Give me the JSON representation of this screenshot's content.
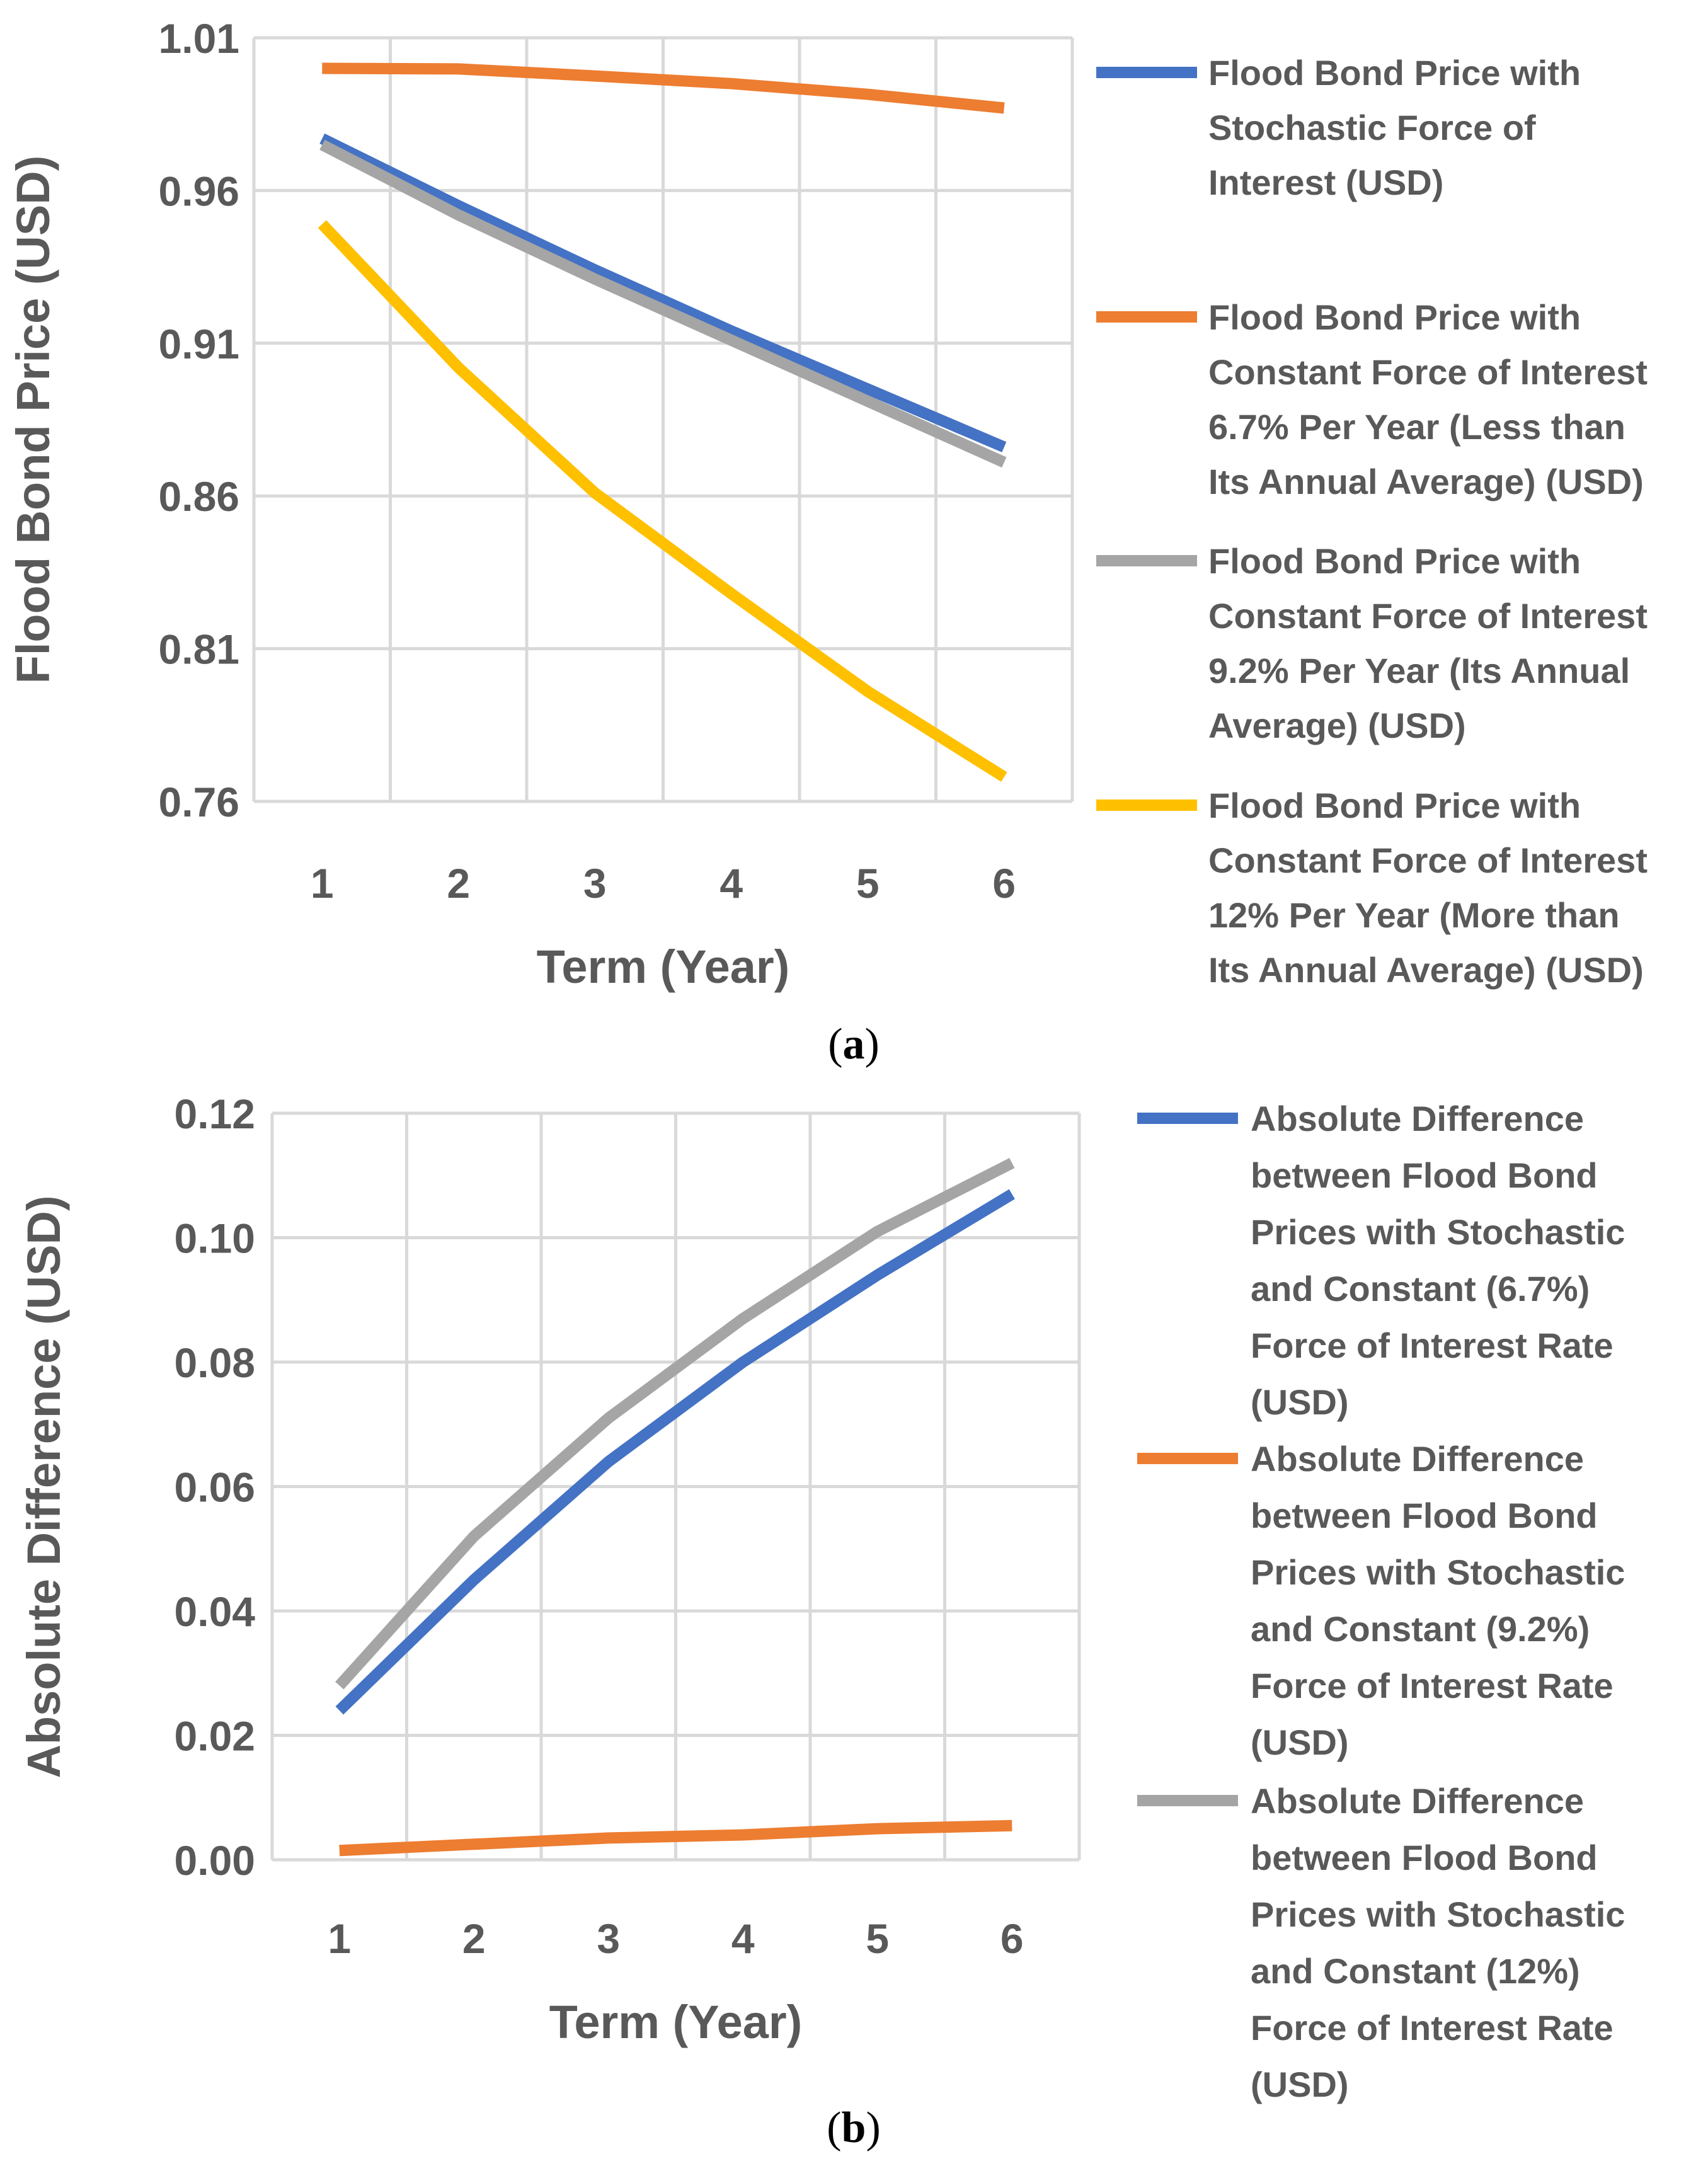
{
  "chart_data": [
    {
      "type": "line",
      "caption_letter": "a",
      "xlabel": "Term (Year)",
      "ylabel": "Flood Bond Price (USD)",
      "categories": [
        1,
        2,
        3,
        4,
        5,
        6
      ],
      "x_tick_labels": [
        "1",
        "2",
        "3",
        "4",
        "5",
        "6"
      ],
      "ylim": [
        0.76,
        1.01
      ],
      "y_ticks": [
        0.76,
        0.81,
        0.86,
        0.91,
        0.96,
        1.01
      ],
      "y_tick_labels": [
        "0.76",
        "0.81",
        "0.86",
        "0.91",
        "0.96",
        "1.01"
      ],
      "grid": true,
      "legend_position": "right",
      "series": [
        {
          "name": "Flood Bond Price with Stochastic Force of Interest (USD)",
          "legend_lines": [
            "Flood Bond Price with",
            "Stochastic Force of",
            "Interest (USD)"
          ],
          "color": "#4472C4",
          "values": [
            0.977,
            0.955,
            0.934,
            0.914,
            0.895,
            0.876
          ]
        },
        {
          "name": "Flood Bond Price with Constant Force of Interest 6.7% Per Year (Less than Its Annual Average) (USD)",
          "legend_lines": [
            "Flood Bond Price with",
            "Constant Force of Interest",
            "6.7% Per Year (Less than",
            "Its Annual Average) (USD)"
          ],
          "color": "#ED7D31",
          "values": [
            1.0,
            0.9998,
            0.9975,
            0.995,
            0.9915,
            0.987
          ]
        },
        {
          "name": "Flood Bond Price with Constant Force of Interest 9.2% Per Year (Its Annual Average) (USD)",
          "legend_lines": [
            "Flood Bond Price with",
            "Constant Force of Interest",
            "9.2% Per Year (Its Annual",
            "Average) (USD)"
          ],
          "color": "#A5A5A5",
          "values": [
            0.975,
            0.952,
            0.931,
            0.911,
            0.891,
            0.871
          ]
        },
        {
          "name": "Flood Bond Price with Constant Force of Interest 12% Per Year (More than Its Annual Average) (USD)",
          "legend_lines": [
            "Flood Bond Price with",
            "Constant Force of Interest",
            "12% Per Year (More than",
            "Its Annual Average) (USD)"
          ],
          "color": "#FFC000",
          "values": [
            0.949,
            0.902,
            0.861,
            0.828,
            0.796,
            0.768
          ]
        }
      ]
    },
    {
      "type": "line",
      "caption_letter": "b",
      "xlabel": "Term (Year)",
      "ylabel": "Absolute Difference (USD)",
      "categories": [
        1,
        2,
        3,
        4,
        5,
        6
      ],
      "x_tick_labels": [
        "1",
        "2",
        "3",
        "4",
        "5",
        "6"
      ],
      "ylim": [
        0.0,
        0.12
      ],
      "y_ticks": [
        0.0,
        0.02,
        0.04,
        0.06,
        0.08,
        0.1,
        0.12
      ],
      "y_tick_labels": [
        "0.00",
        "0.02",
        "0.04",
        "0.06",
        "0.08",
        "0.10",
        "0.12"
      ],
      "grid": true,
      "legend_position": "right",
      "series": [
        {
          "name": "Absolute Difference between Flood Bond Prices with Stochastic and Constant (6.7%) Force of Interest Rate (USD)",
          "legend_lines": [
            "Absolute Difference",
            "between Flood Bond",
            "Prices with Stochastic",
            "and Constant (6.7%)",
            "Force of Interest Rate",
            "(USD)"
          ],
          "color": "#4472C4",
          "values": [
            0.024,
            0.045,
            0.064,
            0.08,
            0.094,
            0.107
          ]
        },
        {
          "name": "Absolute Difference between Flood Bond Prices with Stochastic and Constant (9.2%) Force of Interest Rate (USD)",
          "legend_lines": [
            "Absolute Difference",
            "between Flood Bond",
            "Prices with Stochastic",
            "and Constant (9.2%)",
            "Force of Interest Rate",
            "(USD)"
          ],
          "color": "#ED7D31",
          "values": [
            0.0015,
            0.0025,
            0.0035,
            0.004,
            0.005,
            0.0055
          ]
        },
        {
          "name": "Absolute Difference between Flood Bond Prices with Stochastic and Constant (12%) Force of Interest Rate (USD)",
          "legend_lines": [
            "Absolute Difference",
            "between Flood Bond",
            "Prices with Stochastic",
            "and Constant (12%)",
            "Force of Interest Rate",
            "(USD)"
          ],
          "color": "#A5A5A5",
          "values": [
            0.028,
            0.052,
            0.071,
            0.087,
            0.101,
            0.112
          ]
        }
      ]
    }
  ]
}
